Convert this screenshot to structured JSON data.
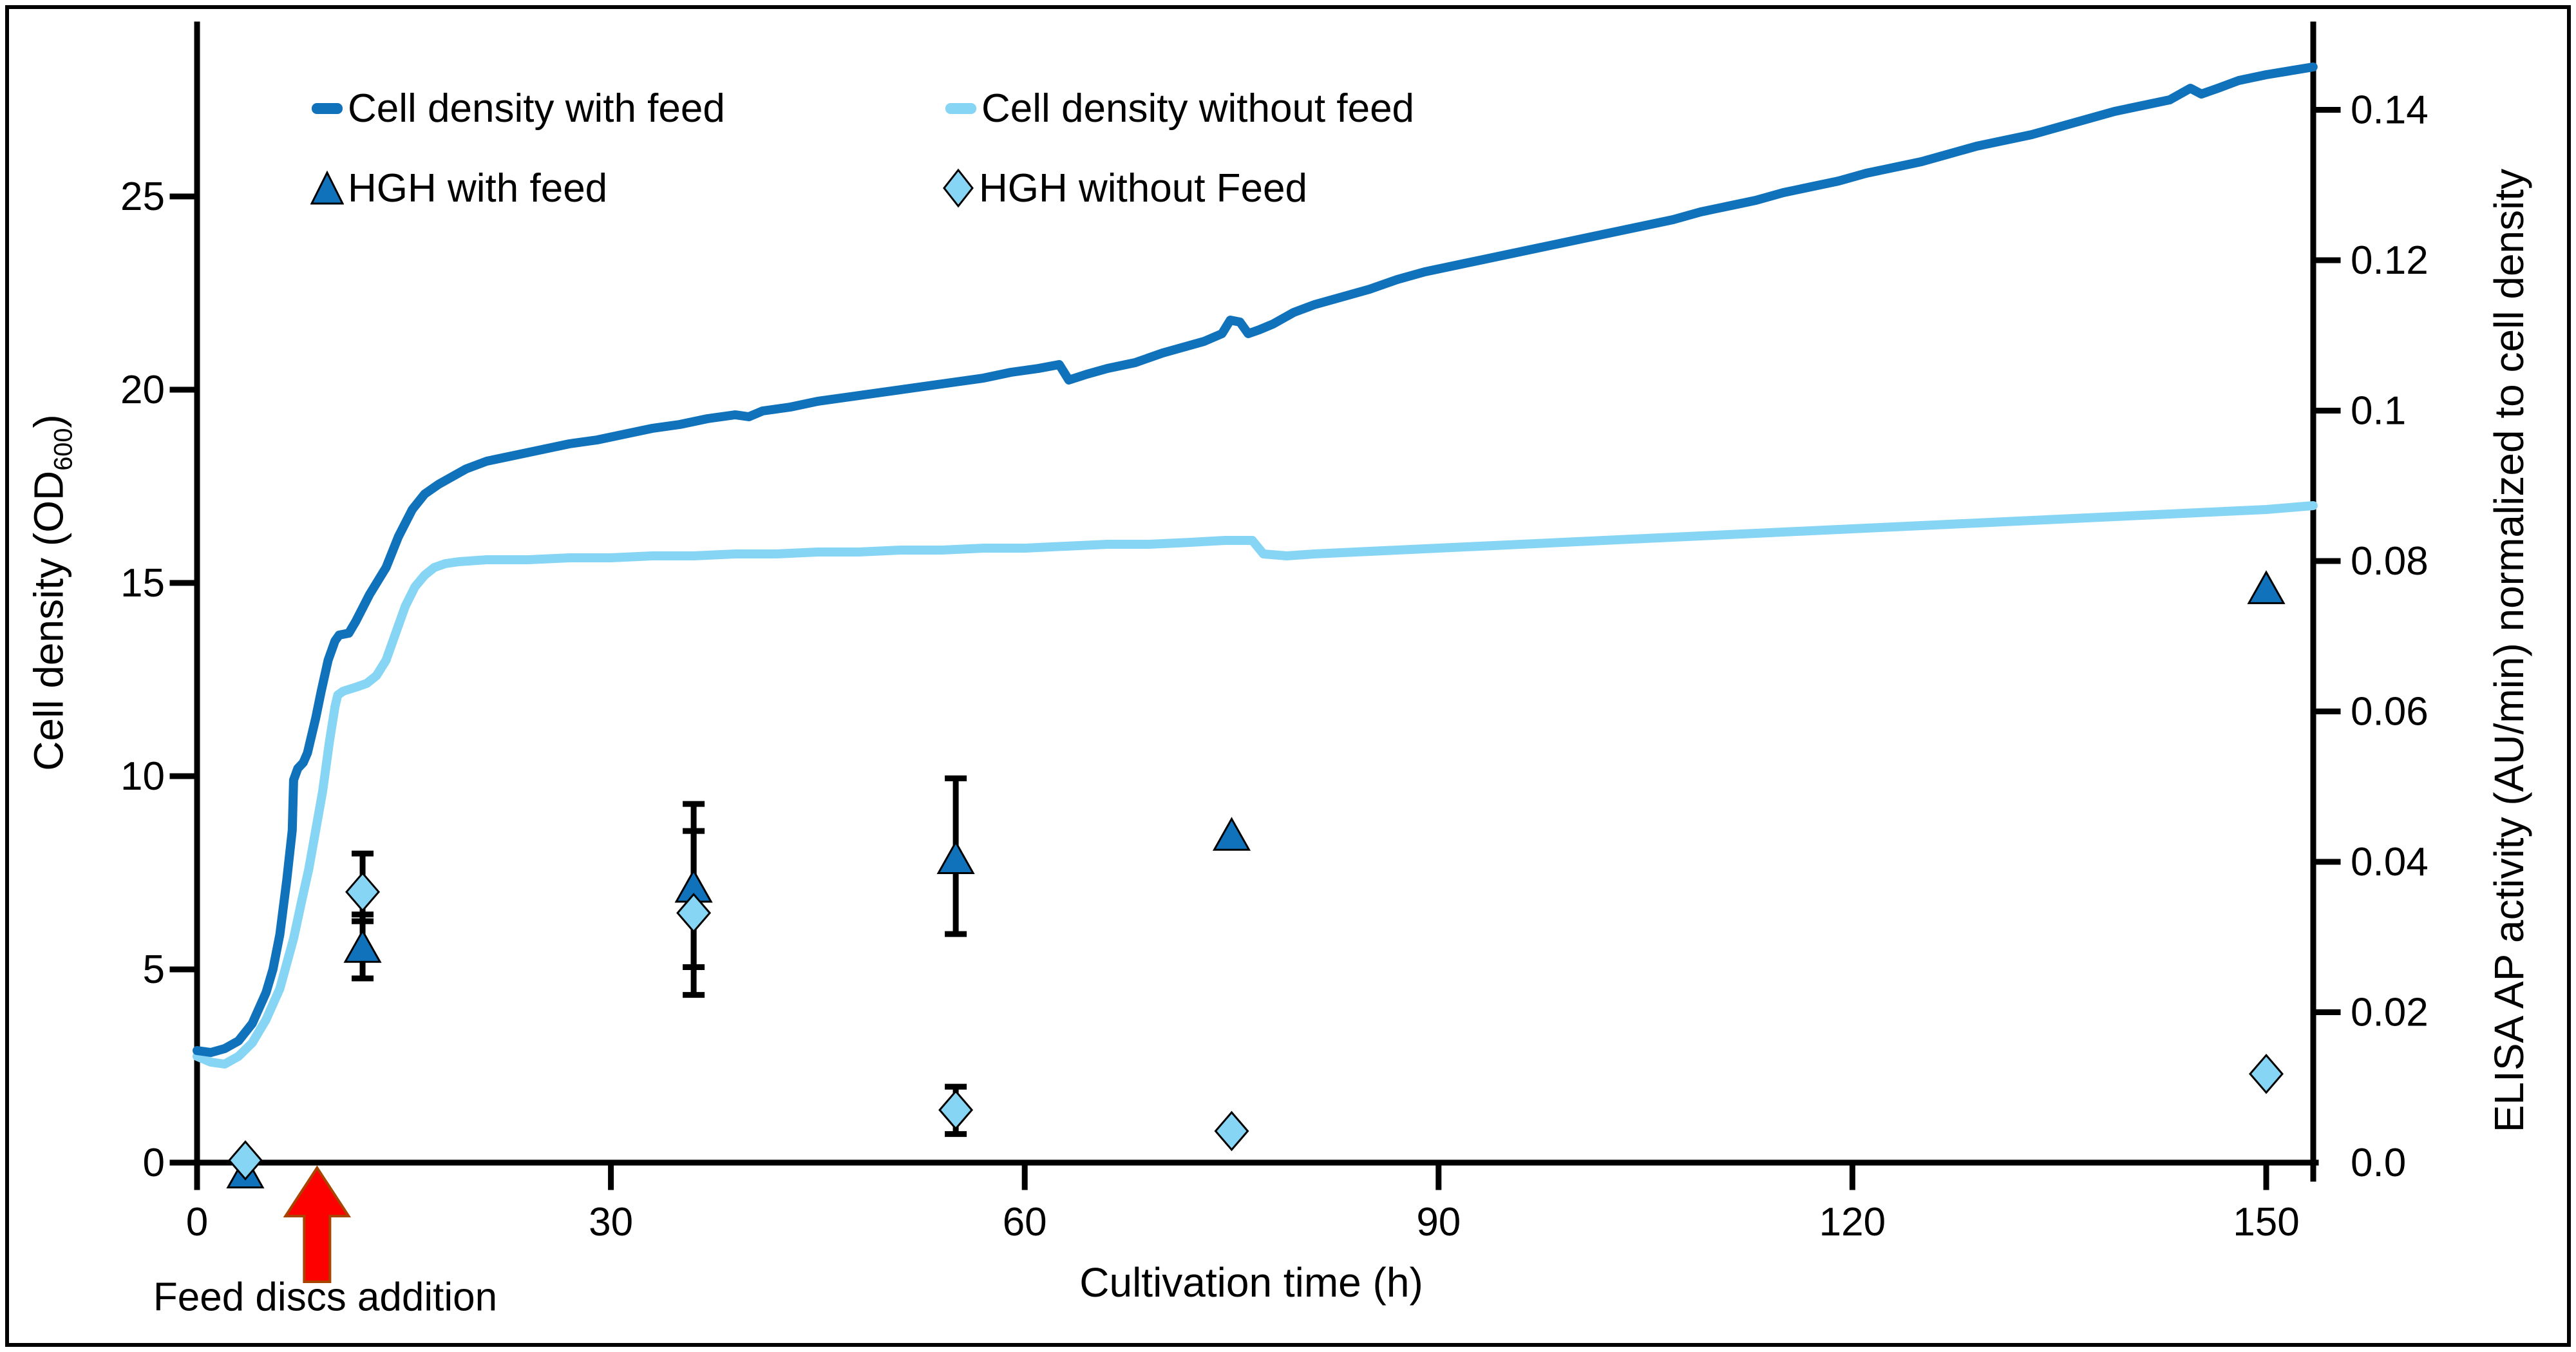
{
  "legend": {
    "cell_density_with_feed": "Cell density with feed",
    "cell_density_without_feed": "Cell density without feed",
    "hgh_with_feed": "HGH with feed",
    "hgh_without_feed": "HGH without Feed"
  },
  "annotation": {
    "text": "Feed discs addition",
    "time_h": 8.7
  },
  "chart_data": {
    "type": "line",
    "title": "",
    "x_axis": {
      "label": "Cultivation time (h)",
      "tick_labels": [
        "0",
        "30",
        "60",
        "90",
        "120",
        "150"
      ],
      "range": [
        0,
        153.5
      ]
    },
    "y_left_axis": {
      "label_prefix": "Cell density (OD",
      "label_subscript": "600",
      "label_suffix": ")",
      "tick_labels": [
        "0",
        "5",
        "10",
        "15",
        "20",
        "25"
      ],
      "range": [
        0,
        29.4
      ]
    },
    "y_right_axis": {
      "label": "ELISA AP activity (AU/min) normalized to cell density",
      "tick_labels": [
        "0.0",
        "0.02",
        "0.04",
        "0.06",
        "0.08",
        "0.1",
        "0.12",
        "0.14"
      ],
      "range": [
        0,
        0.1513
      ]
    },
    "colors": {
      "with_feed": "#1172BC",
      "without_feed": "#87D5F5",
      "error_bars": "#000000",
      "arrow_fill": "#FF0000",
      "arrow_stroke": "#A84300"
    },
    "series": [
      {
        "name": "Cell density with feed",
        "axis": "left",
        "style": "line",
        "points": [
          [
            0,
            2.9
          ],
          [
            1,
            2.85
          ],
          [
            2,
            2.95
          ],
          [
            3,
            3.15
          ],
          [
            4,
            3.6
          ],
          [
            5,
            4.4
          ],
          [
            5.5,
            5.0
          ],
          [
            6,
            5.9
          ],
          [
            6.5,
            7.3
          ],
          [
            6.9,
            8.6
          ],
          [
            7.0,
            9.9
          ],
          [
            7.3,
            10.2
          ],
          [
            7.7,
            10.35
          ],
          [
            8,
            10.6
          ],
          [
            8.6,
            11.5
          ],
          [
            9,
            12.2
          ],
          [
            9.5,
            13.0
          ],
          [
            10,
            13.5
          ],
          [
            10.3,
            13.65
          ],
          [
            11,
            13.7
          ],
          [
            11.5,
            14.0
          ],
          [
            12.5,
            14.7
          ],
          [
            13.7,
            15.4
          ],
          [
            14.6,
            16.2
          ],
          [
            15.6,
            16.9
          ],
          [
            16.5,
            17.3
          ],
          [
            17.5,
            17.55
          ],
          [
            18.5,
            17.75
          ],
          [
            19.5,
            17.95
          ],
          [
            21,
            18.15
          ],
          [
            23,
            18.3
          ],
          [
            25,
            18.45
          ],
          [
            27,
            18.6
          ],
          [
            29,
            18.7
          ],
          [
            31,
            18.85
          ],
          [
            33,
            19.0
          ],
          [
            35,
            19.1
          ],
          [
            37,
            19.25
          ],
          [
            39,
            19.35
          ],
          [
            40,
            19.3
          ],
          [
            41,
            19.45
          ],
          [
            43,
            19.55
          ],
          [
            45,
            19.7
          ],
          [
            47,
            19.8
          ],
          [
            49,
            19.9
          ],
          [
            51,
            20.0
          ],
          [
            53,
            20.1
          ],
          [
            55,
            20.2
          ],
          [
            57,
            20.3
          ],
          [
            59,
            20.45
          ],
          [
            61,
            20.55
          ],
          [
            62.5,
            20.65
          ],
          [
            63.2,
            20.25
          ],
          [
            64.5,
            20.4
          ],
          [
            66,
            20.55
          ],
          [
            68,
            20.7
          ],
          [
            70,
            20.95
          ],
          [
            71.5,
            21.1
          ],
          [
            73,
            21.25
          ],
          [
            74.3,
            21.45
          ],
          [
            74.9,
            21.8
          ],
          [
            75.6,
            21.75
          ],
          [
            76.2,
            21.45
          ],
          [
            77,
            21.55
          ],
          [
            78,
            21.7
          ],
          [
            79.5,
            22.0
          ],
          [
            81,
            22.2
          ],
          [
            83,
            22.4
          ],
          [
            85,
            22.6
          ],
          [
            87,
            22.85
          ],
          [
            89,
            23.05
          ],
          [
            91,
            23.2
          ],
          [
            93,
            23.35
          ],
          [
            95,
            23.5
          ],
          [
            97,
            23.65
          ],
          [
            99,
            23.8
          ],
          [
            101,
            23.95
          ],
          [
            103,
            24.1
          ],
          [
            105,
            24.25
          ],
          [
            107,
            24.4
          ],
          [
            109,
            24.6
          ],
          [
            111,
            24.75
          ],
          [
            113,
            24.9
          ],
          [
            115,
            25.1
          ],
          [
            117,
            25.25
          ],
          [
            119,
            25.4
          ],
          [
            121,
            25.6
          ],
          [
            123,
            25.75
          ],
          [
            125,
            25.9
          ],
          [
            127,
            26.1
          ],
          [
            129,
            26.3
          ],
          [
            131,
            26.45
          ],
          [
            133,
            26.6
          ],
          [
            135,
            26.8
          ],
          [
            137,
            27.0
          ],
          [
            139,
            27.2
          ],
          [
            141,
            27.35
          ],
          [
            143,
            27.5
          ],
          [
            144.5,
            27.8
          ],
          [
            145.3,
            27.65
          ],
          [
            146.5,
            27.8
          ],
          [
            148,
            28.0
          ],
          [
            150,
            28.15
          ],
          [
            153.4,
            28.35
          ]
        ]
      },
      {
        "name": "Cell density without feed",
        "axis": "left",
        "style": "line",
        "points": [
          [
            0,
            2.75
          ],
          [
            1,
            2.6
          ],
          [
            2,
            2.55
          ],
          [
            3,
            2.75
          ],
          [
            4,
            3.1
          ],
          [
            5,
            3.7
          ],
          [
            6,
            4.5
          ],
          [
            7,
            5.8
          ],
          [
            7.6,
            6.8
          ],
          [
            8.1,
            7.6
          ],
          [
            8.6,
            8.6
          ],
          [
            9.1,
            9.6
          ],
          [
            9.6,
            10.9
          ],
          [
            10,
            11.8
          ],
          [
            10.2,
            12.1
          ],
          [
            10.6,
            12.2
          ],
          [
            11.5,
            12.3
          ],
          [
            12.3,
            12.4
          ],
          [
            13,
            12.6
          ],
          [
            13.7,
            13.0
          ],
          [
            14.4,
            13.7
          ],
          [
            15.1,
            14.4
          ],
          [
            15.8,
            14.9
          ],
          [
            16.5,
            15.2
          ],
          [
            17.2,
            15.4
          ],
          [
            18,
            15.5
          ],
          [
            19,
            15.55
          ],
          [
            21,
            15.6
          ],
          [
            24,
            15.6
          ],
          [
            27,
            15.65
          ],
          [
            30,
            15.65
          ],
          [
            33,
            15.7
          ],
          [
            36,
            15.7
          ],
          [
            39,
            15.75
          ],
          [
            42,
            15.75
          ],
          [
            45,
            15.8
          ],
          [
            48,
            15.8
          ],
          [
            51,
            15.85
          ],
          [
            54,
            15.85
          ],
          [
            57,
            15.9
          ],
          [
            60,
            15.9
          ],
          [
            63,
            15.95
          ],
          [
            66,
            16.0
          ],
          [
            69,
            16.0
          ],
          [
            72,
            16.05
          ],
          [
            74.5,
            16.1
          ],
          [
            76.5,
            16.1
          ],
          [
            77.3,
            15.75
          ],
          [
            79,
            15.7
          ],
          [
            81,
            15.75
          ],
          [
            84,
            15.8
          ],
          [
            87,
            15.85
          ],
          [
            90,
            15.9
          ],
          [
            93,
            15.95
          ],
          [
            96,
            16.0
          ],
          [
            99,
            16.05
          ],
          [
            102,
            16.1
          ],
          [
            105,
            16.15
          ],
          [
            108,
            16.2
          ],
          [
            111,
            16.25
          ],
          [
            114,
            16.3
          ],
          [
            117,
            16.35
          ],
          [
            120,
            16.4
          ],
          [
            123,
            16.45
          ],
          [
            126,
            16.5
          ],
          [
            129,
            16.55
          ],
          [
            132,
            16.6
          ],
          [
            135,
            16.65
          ],
          [
            138,
            16.7
          ],
          [
            141,
            16.75
          ],
          [
            144,
            16.8
          ],
          [
            147,
            16.85
          ],
          [
            150,
            16.9
          ],
          [
            153.4,
            17.0
          ]
        ]
      },
      {
        "name": "HGH with feed",
        "axis": "right",
        "style": "scatter-triangle",
        "points": [
          {
            "t": 3.5,
            "v": -0.0015
          },
          {
            "t": 12,
            "v": 0.0285,
            "err_lo": 0.0245,
            "err_hi": 0.033
          },
          {
            "t": 36,
            "v": 0.0365,
            "err_lo": 0.026,
            "err_hi": 0.0477
          },
          {
            "t": 55,
            "v": 0.0403,
            "err_lo": 0.0304,
            "err_hi": 0.0511
          },
          {
            "t": 75,
            "v": 0.0434
          },
          {
            "t": 150,
            "v": 0.0762
          }
        ]
      },
      {
        "name": "HGH without Feed",
        "axis": "right",
        "style": "scatter-diamond",
        "points": [
          {
            "t": 3.5,
            "v": 0.0003
          },
          {
            "t": 12,
            "v": 0.036,
            "err_lo": 0.0321,
            "err_hi": 0.0411
          },
          {
            "t": 36,
            "v": 0.0332,
            "err_lo": 0.0223,
            "err_hi": 0.0441
          },
          {
            "t": 55,
            "v": 0.007,
            "err_lo": 0.0038,
            "err_hi": 0.0101
          },
          {
            "t": 75,
            "v": 0.0042
          },
          {
            "t": 150,
            "v": 0.0118
          }
        ]
      }
    ],
    "layout_hints": {
      "grid": false,
      "legend_position": "top-left-inside",
      "left_spine": true,
      "right_spine": true,
      "bottom_spine": true
    }
  }
}
